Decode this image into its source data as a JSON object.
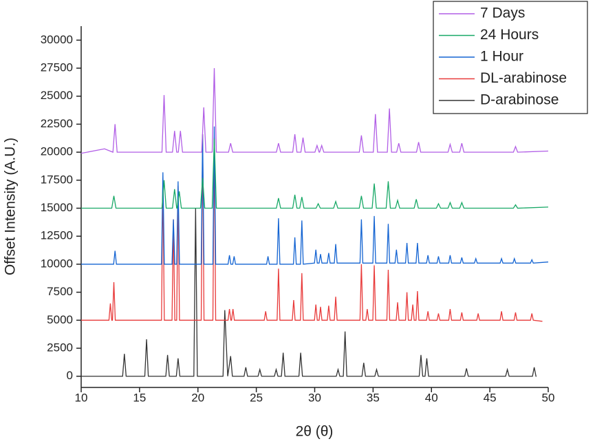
{
  "chart_data": {
    "type": "line",
    "xlabel": "2θ (θ)",
    "ylabel": "Offset Intensity (A.U.)",
    "xlim": [
      10,
      50
    ],
    "xticks": [
      10,
      15,
      20,
      25,
      30,
      35,
      40,
      45,
      50
    ],
    "ylim": [
      -1000,
      31250
    ],
    "yticks": [
      0,
      2500,
      5000,
      7500,
      10000,
      12500,
      15000,
      17500,
      20000,
      22500,
      25000,
      27500,
      30000
    ],
    "legend": "top-right",
    "series": [
      {
        "name": "7 Days",
        "color": "#b15ee6",
        "x": [
          10,
          12,
          12.72,
          12.9,
          13.08,
          16.92,
          17.1,
          17.28,
          17.82,
          18,
          18.18,
          18.32,
          18.5,
          18.68,
          20.32,
          20.5,
          20.68,
          21.22,
          21.4,
          21.58,
          22.62,
          22.8,
          22.98,
          26.72,
          26.9,
          27.08,
          28.12,
          28.3,
          28.48,
          28.82,
          29,
          29.18,
          30.02,
          30.2,
          30.38,
          30.42,
          30.6,
          30.78,
          33.82,
          34,
          34.18,
          35.02,
          35.2,
          35.38,
          36.22,
          36.4,
          36.58,
          37.02,
          37.2,
          37.38,
          38.72,
          38.9,
          39.08,
          41.42,
          41.6,
          41.78,
          42.42,
          42.6,
          42.78,
          47.02,
          47.2,
          47.38,
          50
        ],
        "values": [
          19900,
          20300,
          20000,
          22500,
          20000,
          20000,
          25100,
          20000,
          20000,
          21900,
          20000,
          20000,
          21900,
          20000,
          20000,
          24000,
          20000,
          20000,
          27500,
          20000,
          20000,
          20800,
          20000,
          20000,
          20800,
          20000,
          20000,
          21600,
          20000,
          20000,
          21300,
          20000,
          20000,
          20600,
          20000,
          20000,
          20600,
          20000,
          20000,
          21500,
          20000,
          20000,
          23400,
          20000,
          20000,
          23900,
          20000,
          20000,
          20800,
          20000,
          20000,
          20900,
          20000,
          20000,
          20700,
          20000,
          20000,
          20800,
          20000,
          20000,
          20500,
          20000,
          20100
        ]
      },
      {
        "name": "24 Hours",
        "color": "#17a866",
        "x": [
          10,
          12.62,
          12.8,
          12.98,
          16.92,
          17.1,
          17.28,
          17.82,
          18,
          18.18,
          18.22,
          18.4,
          18.58,
          20.22,
          20.4,
          20.58,
          21.22,
          21.4,
          21.58,
          26.72,
          26.9,
          27.08,
          28.12,
          28.3,
          28.48,
          28.72,
          28.9,
          29.08,
          30.12,
          30.3,
          30.48,
          31.62,
          31.8,
          31.98,
          33.82,
          34,
          34.18,
          34.92,
          35.1,
          35.28,
          36.12,
          36.3,
          36.48,
          36.92,
          37.1,
          37.28,
          38.52,
          38.7,
          38.88,
          40.42,
          40.6,
          40.78,
          41.42,
          41.6,
          41.78,
          42.42,
          42.6,
          42.78,
          47.02,
          47.2,
          47.38,
          50
        ],
        "values": [
          15000,
          15000,
          16100,
          15000,
          15000,
          17500,
          15000,
          15000,
          16700,
          15000,
          15000,
          16500,
          15000,
          15000,
          17700,
          15000,
          15000,
          21200,
          15000,
          15000,
          15900,
          15000,
          15000,
          16200,
          15000,
          15000,
          16000,
          15000,
          15000,
          15400,
          15000,
          15000,
          15600,
          15000,
          15000,
          16100,
          15000,
          15000,
          17200,
          15000,
          15000,
          17400,
          15000,
          15000,
          15700,
          15000,
          15000,
          15800,
          15000,
          15000,
          15400,
          15000,
          15000,
          15500,
          15000,
          15000,
          15500,
          15000,
          15000,
          15300,
          15000,
          15100
        ]
      },
      {
        "name": "1 Hour",
        "color": "#1464d2",
        "x": [
          10,
          12.78,
          12.9,
          13.02,
          16.88,
          17,
          17.12,
          17.78,
          17.9,
          18.02,
          18.18,
          18.3,
          18.42,
          20.28,
          20.4,
          20.52,
          21.28,
          21.4,
          21.52,
          22.58,
          22.7,
          22.82,
          22.98,
          23.1,
          23.22,
          25.88,
          26,
          26.12,
          26.78,
          26.9,
          27.02,
          28.18,
          28.3,
          28.42,
          28.78,
          28.9,
          29.02,
          29.98,
          30.1,
          30.22,
          30.38,
          30.5,
          30.62,
          31.08,
          31.2,
          31.32,
          31.68,
          31.8,
          31.92,
          33.88,
          34,
          34.12,
          34.98,
          35.1,
          35.22,
          36.18,
          36.3,
          36.42,
          36.88,
          37,
          37.12,
          37.78,
          37.9,
          38.02,
          38.68,
          38.8,
          38.92,
          39.58,
          39.7,
          39.82,
          40.48,
          40.6,
          40.72,
          41.48,
          41.6,
          41.72,
          42.48,
          42.6,
          42.72,
          43.68,
          43.8,
          43.92,
          45.88,
          46,
          46.12,
          46.98,
          47.1,
          47.22,
          48.48,
          48.6,
          48.72,
          50
        ],
        "values": [
          10000,
          10000,
          11200,
          10000,
          10000,
          18200,
          10000,
          10000,
          14000,
          10000,
          10000,
          17400,
          10000,
          10000,
          21600,
          10000,
          10000,
          22300,
          10000,
          10000,
          10800,
          10000,
          10000,
          10700,
          10000,
          10000,
          10700,
          10000,
          10000,
          14100,
          10000,
          10000,
          12400,
          10000,
          10000,
          13900,
          10000,
          10100,
          11300,
          10100,
          10100,
          10900,
          10100,
          10100,
          11000,
          10100,
          10100,
          11800,
          10100,
          10100,
          14000,
          10100,
          10100,
          14300,
          10100,
          10100,
          13600,
          10100,
          10100,
          11300,
          10100,
          10100,
          11900,
          10100,
          10100,
          11900,
          10100,
          10100,
          10800,
          10100,
          10100,
          10700,
          10100,
          10100,
          10800,
          10100,
          10100,
          10600,
          10100,
          10100,
          10500,
          10100,
          10100,
          10500,
          10100,
          10100,
          10500,
          10100,
          10100,
          10400,
          10100,
          10200
        ]
      },
      {
        "name": "DL-arabinose",
        "color": "#e83a3a",
        "x": [
          10,
          12.38,
          12.5,
          12.62,
          12.68,
          12.8,
          12.92,
          16.88,
          17,
          17.12,
          17.78,
          17.9,
          18.02,
          18.18,
          18.3,
          18.42,
          20.28,
          20.4,
          20.52,
          21.28,
          21.4,
          21.52,
          22.58,
          22.7,
          22.82,
          22.88,
          23,
          23.12,
          25.68,
          25.8,
          25.92,
          26.78,
          26.9,
          27.02,
          28.08,
          28.2,
          28.32,
          28.78,
          28.9,
          29.02,
          29.98,
          30.1,
          30.22,
          30.38,
          30.5,
          30.62,
          31.08,
          31.2,
          31.32,
          31.68,
          31.8,
          31.92,
          33.88,
          34,
          34.12,
          34.38,
          34.5,
          34.62,
          34.98,
          35.1,
          35.22,
          36.18,
          36.3,
          36.42,
          36.98,
          37.1,
          37.22,
          37.78,
          37.9,
          38.02,
          38.28,
          38.4,
          38.52,
          38.68,
          38.8,
          38.92,
          39.58,
          39.7,
          39.82,
          40.48,
          40.6,
          40.72,
          41.48,
          41.6,
          41.72,
          42.48,
          42.6,
          42.72,
          43.88,
          44,
          44.12,
          45.88,
          46,
          46.12,
          47.08,
          47.2,
          47.32,
          48.48,
          48.6,
          48.72,
          49.5
        ],
        "values": [
          5000,
          5000,
          6500,
          5000,
          5000,
          8400,
          5000,
          5000,
          17700,
          5000,
          5000,
          14000,
          5000,
          5000,
          17000,
          5000,
          5000,
          21600,
          5000,
          5000,
          21300,
          5000,
          5000,
          6000,
          5000,
          5000,
          6000,
          5000,
          5000,
          5800,
          5000,
          5000,
          9600,
          5000,
          5000,
          6800,
          5000,
          5000,
          9200,
          5000,
          5000,
          6400,
          5000,
          5000,
          6200,
          5000,
          5000,
          6300,
          5000,
          5000,
          7100,
          5000,
          5000,
          10000,
          5000,
          5000,
          6000,
          5000,
          5000,
          9900,
          5000,
          5000,
          9500,
          5000,
          5000,
          6600,
          5000,
          5000,
          7500,
          5000,
          5000,
          6400,
          5000,
          5000,
          7600,
          5000,
          5000,
          5800,
          5000,
          5000,
          5600,
          5000,
          5000,
          6000,
          5000,
          5000,
          5700,
          5000,
          5000,
          5600,
          5000,
          5000,
          5800,
          5000,
          5000,
          5700,
          5000,
          5000,
          5600,
          5000,
          4900
        ]
      },
      {
        "name": "D-arabinose",
        "color": "#333333",
        "x": [
          10,
          13.55,
          13.7,
          13.85,
          15.45,
          15.6,
          15.75,
          17.25,
          17.4,
          17.55,
          18.15,
          18.3,
          18.45,
          19.65,
          19.8,
          19.95,
          22.15,
          22.3,
          22.55,
          22.8,
          22.95,
          23.95,
          24.1,
          24.25,
          25.15,
          25.3,
          25.45,
          26.55,
          26.7,
          26.85,
          27.15,
          27.3,
          27.45,
          28.65,
          28.8,
          28.95,
          31.85,
          32,
          32.15,
          32.45,
          32.6,
          32.75,
          34.05,
          34.2,
          34.35,
          35.15,
          35.3,
          35.45,
          38.95,
          39.1,
          39.25,
          39.45,
          39.6,
          39.75,
          42.85,
          43,
          43.15,
          46.35,
          46.5,
          46.65,
          48.65,
          48.8,
          48.95,
          49
        ],
        "values": [
          0,
          0,
          2000,
          0,
          0,
          3300,
          0,
          0,
          1900,
          0,
          0,
          1600,
          0,
          0,
          15000,
          0,
          0,
          5900,
          0,
          1800,
          0,
          0,
          800,
          0,
          0,
          600,
          0,
          0,
          600,
          0,
          0,
          2100,
          0,
          0,
          2100,
          0,
          0,
          600,
          0,
          0,
          4000,
          0,
          0,
          1200,
          0,
          0,
          600,
          0,
          0,
          1900,
          0,
          0,
          1600,
          0,
          0,
          700,
          0,
          0,
          600,
          0,
          0,
          800,
          0,
          0
        ]
      }
    ]
  }
}
